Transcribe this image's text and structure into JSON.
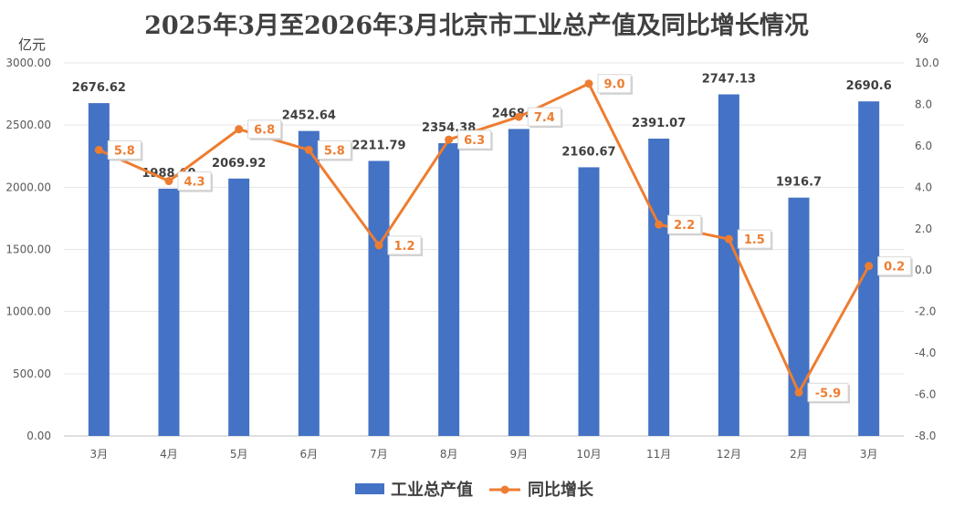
{
  "chart_data": {
    "type": "bar",
    "title": "2025年3月至2026年3月北京市工业总产值及同比增长情况",
    "ylabel": "亿元",
    "y2label": "%",
    "categories": [
      "3月",
      "4月",
      "5月",
      "6月",
      "7月",
      "8月",
      "9月",
      "10月",
      "11月",
      "12月",
      "2月",
      "3月"
    ],
    "ylim": [
      0,
      3000
    ],
    "y_ticks": [
      "0.00",
      "500.00",
      "1000.00",
      "1500.00",
      "2000.00",
      "2500.00",
      "3000.00"
    ],
    "y2lim": [
      -8,
      10
    ],
    "y2_ticks": [
      "-8.0",
      "-6.0",
      "-4.0",
      "-2.0",
      "0.0",
      "2.0",
      "4.0",
      "6.0",
      "8.0",
      "10.0"
    ],
    "grid": true,
    "legend_position": "bottom",
    "series": [
      {
        "name": "工业总产值",
        "type": "bar",
        "axis": "left",
        "color": "#4472c4",
        "values": [
          2676.62,
          1988.6,
          2069.92,
          2452.64,
          2211.79,
          2354.38,
          2468.85,
          2160.67,
          2391.07,
          2747.13,
          1916.7,
          2690.6
        ],
        "labels": [
          "2676.62",
          "1988.60",
          "2069.92",
          "2452.64",
          "2211.79",
          "2354.38",
          "2468.85",
          "2160.67",
          "2391.07",
          "2747.13",
          "1916.7",
          "2690.6"
        ]
      },
      {
        "name": "同比增长",
        "type": "line",
        "axis": "right",
        "color": "#ed7d31",
        "values": [
          5.8,
          4.3,
          6.8,
          5.8,
          1.2,
          6.3,
          7.4,
          9.0,
          2.2,
          1.5,
          -5.9,
          0.2
        ],
        "labels": [
          "5.8",
          "4.3",
          "6.8",
          "5.8",
          "1.2",
          "6.3",
          "7.4",
          "9.0",
          "2.2",
          "1.5",
          "-5.9",
          "0.2"
        ]
      }
    ]
  }
}
